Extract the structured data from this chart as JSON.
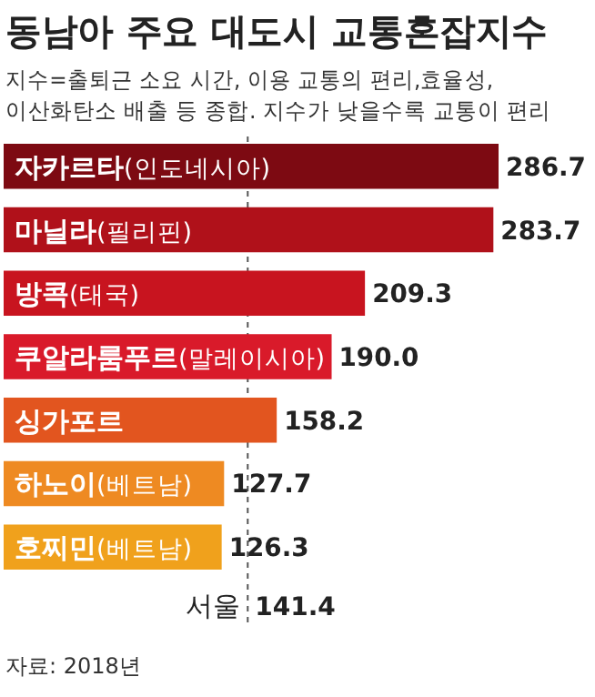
{
  "chart_data": {
    "type": "bar",
    "orientation": "horizontal",
    "title": "동남아 주요 대도시 교통혼잡지수",
    "subtitle": "지수=출퇴근 소요 시간, 이용 교통의 편리,효율성,\n이산화탄소 배출 등 종합. 지수가 낮을수록 교통이 편리",
    "categories": [
      "자카르타(인도네시아)",
      "마닐라(필리핀)",
      "방콕(태국)",
      "쿠알라룸푸르(말레이시아)",
      "싱가포르",
      "하노이(베트남)",
      "호찌민(베트남)"
    ],
    "values": [
      286.7,
      283.7,
      209.3,
      190.0,
      158.2,
      127.7,
      126.3
    ],
    "value_labels": [
      "286.7",
      "283.7",
      "209.3",
      "190.0",
      "158.2",
      "127.7",
      "126.3"
    ],
    "colors": [
      "#7d0a12",
      "#b0111a",
      "#c8141f",
      "#d91a2a",
      "#e2551f",
      "#ee8a22",
      "#f0a11c"
    ],
    "ref_lines": [
      {
        "axis": "x",
        "value": 141.4,
        "label": "서울",
        "line_style": "dashed",
        "color": "#555555"
      }
    ],
    "annotations": [
      {
        "text": "141.4",
        "x": 141.4
      },
      "자료: 2018년"
    ]
  }
}
